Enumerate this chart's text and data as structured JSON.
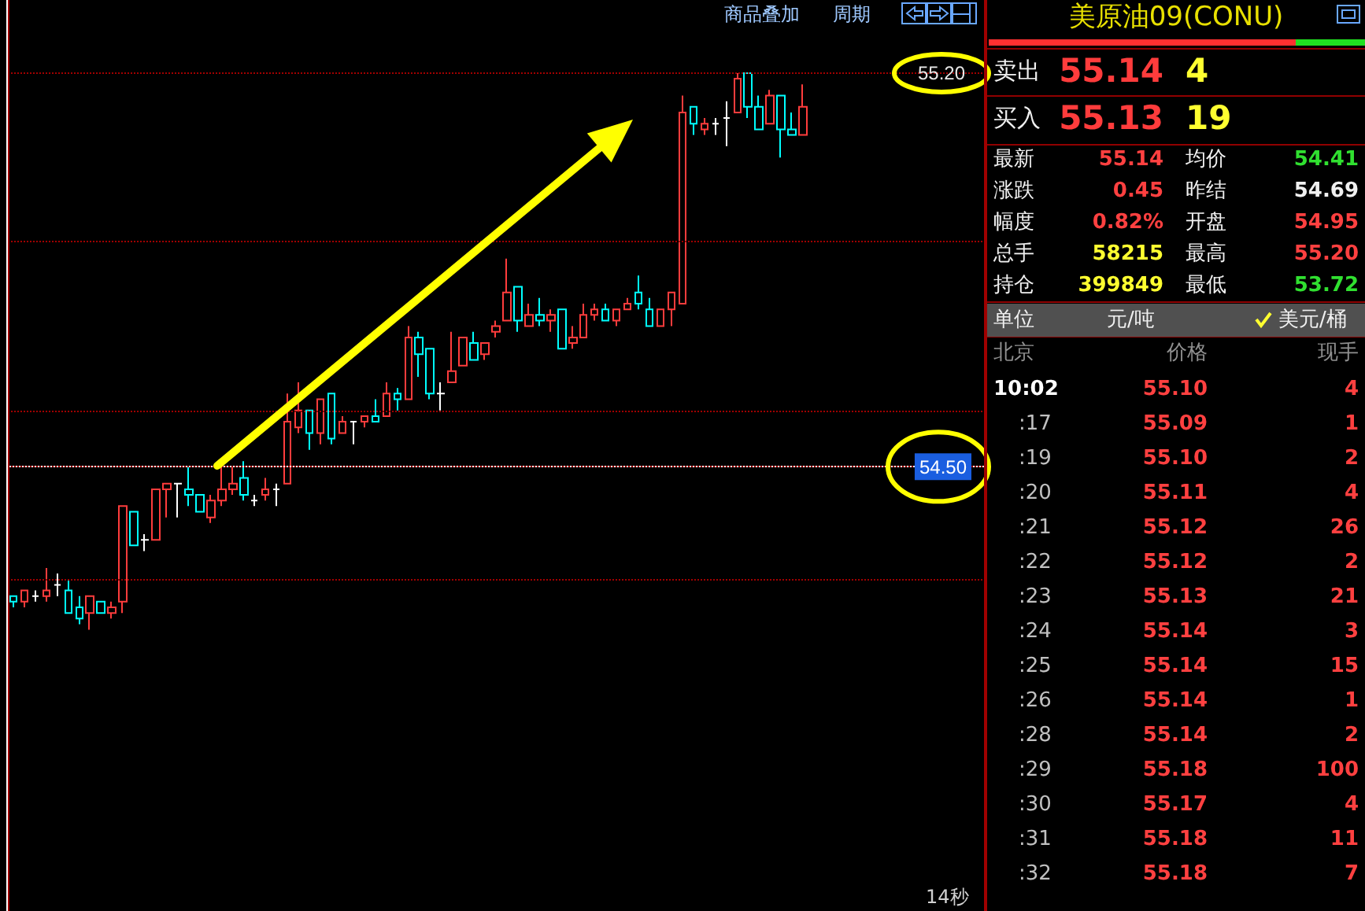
{
  "chart_data": [
    {
      "type": "candlestick",
      "categories": [
        null,
        null,
        null,
        null,
        null,
        null,
        null,
        null,
        null,
        null,
        null,
        null,
        null,
        null,
        null,
        null,
        null,
        null,
        null,
        null,
        null,
        null,
        null,
        null,
        null,
        null,
        null,
        null,
        null,
        null,
        null,
        null,
        null,
        null,
        null,
        null,
        null,
        null,
        null,
        null,
        null,
        null,
        null,
        null,
        null,
        null,
        null,
        null,
        null,
        null,
        null,
        null,
        null,
        null,
        null,
        null,
        null,
        null,
        null,
        null,
        null,
        null,
        null,
        null,
        null,
        null,
        null,
        null,
        null,
        null,
        null,
        null,
        null,
        null,
        null,
        null,
        null,
        null,
        null,
        null,
        null,
        null,
        null,
        null,
        null,
        null,
        null,
        null,
        null
      ],
      "ohlc": [
        [
          54.27,
          54.27,
          54.25,
          54.26
        ],
        [
          54.26,
          54.28,
          54.25,
          54.28
        ],
        [
          54.27,
          54.28,
          54.26,
          54.27
        ],
        [
          54.27,
          54.32,
          54.26,
          54.28
        ],
        [
          54.29,
          54.31,
          54.27,
          54.29
        ],
        [
          54.28,
          54.3,
          54.24,
          54.24
        ],
        [
          54.25,
          54.27,
          54.22,
          54.23
        ],
        [
          54.24,
          54.27,
          54.21,
          54.27
        ],
        [
          54.26,
          54.26,
          54.24,
          54.24
        ],
        [
          54.24,
          54.26,
          54.23,
          54.25
        ],
        [
          54.26,
          54.43,
          54.24,
          54.43
        ],
        [
          54.42,
          54.42,
          54.36,
          54.36
        ],
        [
          54.37,
          54.38,
          54.35,
          54.37
        ],
        [
          54.37,
          54.46,
          54.37,
          54.46
        ],
        [
          54.46,
          54.47,
          54.41,
          54.47
        ],
        [
          54.47,
          54.47,
          54.41,
          54.47
        ],
        [
          54.46,
          54.5,
          54.43,
          54.45
        ],
        [
          54.45,
          54.45,
          54.42,
          54.42
        ],
        [
          54.41,
          54.45,
          54.4,
          54.44
        ],
        [
          54.44,
          54.5,
          54.43,
          54.46
        ],
        [
          54.46,
          54.5,
          54.45,
          54.47
        ],
        [
          54.48,
          54.51,
          54.44,
          54.45
        ],
        [
          54.44,
          54.45,
          54.43,
          54.44
        ],
        [
          54.45,
          54.48,
          54.44,
          54.46
        ],
        [
          54.46,
          54.47,
          54.43,
          54.46
        ],
        [
          54.47,
          54.63,
          54.47,
          54.58
        ],
        [
          54.57,
          54.65,
          54.56,
          54.6
        ],
        [
          54.6,
          54.6,
          54.53,
          54.56
        ],
        [
          54.56,
          54.62,
          54.54,
          54.62
        ],
        [
          54.63,
          54.63,
          54.54,
          54.55
        ],
        [
          54.56,
          54.59,
          54.56,
          54.58
        ],
        [
          54.58,
          54.58,
          54.54,
          54.58
        ],
        [
          54.58,
          54.59,
          54.57,
          54.59
        ],
        [
          54.59,
          54.62,
          54.58,
          54.58
        ],
        [
          54.59,
          54.65,
          54.59,
          54.63
        ],
        [
          54.63,
          54.64,
          54.6,
          54.62
        ],
        [
          54.62,
          54.75,
          54.62,
          54.73
        ],
        [
          54.73,
          54.74,
          54.66,
          54.7
        ],
        [
          54.71,
          54.71,
          54.62,
          54.63
        ],
        [
          54.63,
          54.65,
          54.6,
          54.63
        ],
        [
          54.65,
          54.74,
          54.65,
          54.67
        ],
        [
          54.68,
          54.73,
          54.68,
          54.73
        ],
        [
          54.72,
          54.74,
          54.69,
          54.69
        ],
        [
          54.7,
          54.72,
          54.69,
          54.72
        ],
        [
          54.74,
          54.76,
          54.73,
          54.75
        ],
        [
          54.76,
          54.87,
          54.76,
          54.81
        ],
        [
          54.82,
          54.82,
          54.74,
          54.76
        ],
        [
          54.75,
          54.79,
          54.75,
          54.77
        ],
        [
          54.77,
          54.8,
          54.75,
          54.76
        ],
        [
          54.76,
          54.78,
          54.74,
          54.77
        ],
        [
          54.78,
          54.78,
          54.71,
          54.71
        ],
        [
          54.72,
          54.75,
          54.71,
          54.73
        ],
        [
          54.73,
          54.79,
          54.73,
          54.77
        ],
        [
          54.77,
          54.79,
          54.76,
          54.78
        ],
        [
          54.78,
          54.79,
          54.76,
          54.76
        ],
        [
          54.76,
          54.78,
          54.75,
          54.78
        ],
        [
          54.78,
          54.8,
          54.78,
          54.79
        ],
        [
          54.81,
          54.84,
          54.78,
          54.79
        ],
        [
          54.78,
          54.8,
          54.75,
          54.75
        ],
        [
          54.75,
          54.78,
          54.75,
          54.78
        ],
        [
          54.78,
          54.81,
          54.75,
          54.81
        ],
        [
          54.79,
          55.16,
          54.79,
          55.13
        ],
        [
          55.14,
          55.14,
          55.09,
          55.11
        ],
        [
          55.1,
          55.12,
          55.09,
          55.11
        ],
        [
          55.11,
          55.12,
          55.09,
          55.11
        ],
        [
          55.12,
          55.15,
          55.07,
          55.12
        ],
        [
          55.13,
          55.2,
          55.13,
          55.19
        ],
        [
          55.2,
          55.2,
          55.12,
          55.14
        ],
        [
          55.14,
          55.16,
          55.1,
          55.1
        ],
        [
          55.11,
          55.17,
          55.11,
          55.16
        ],
        [
          55.16,
          55.16,
          55.05,
          55.1
        ],
        [
          55.1,
          55.13,
          55.09,
          55.09
        ],
        [
          55.09,
          55.18,
          55.09,
          55.14
        ],
        null,
        null,
        null,
        null,
        null,
        null,
        null,
        null,
        null,
        null,
        null,
        null,
        null,
        null,
        null,
        null
      ],
      "colors": [
        "#00ffff",
        "#ff3c3c",
        "#ffffff",
        "#ff3c3c",
        "#ffffff",
        "#00ffff",
        "#00ffff",
        "#ff3c3c",
        "#00ffff",
        "#ff3c3c",
        "#ff3c3c",
        "#00ffff",
        "#ffffff",
        "#ff3c3c",
        "#ff3c3c",
        "#ffffff",
        "#00ffff",
        "#00ffff",
        "#ff3c3c",
        "#ff3c3c",
        "#ff3c3c",
        "#00ffff",
        "#ffffff",
        "#ff3c3c",
        "#ffffff",
        "#ff3c3c",
        "#ff3c3c",
        "#00ffff",
        "#ff3c3c",
        "#00ffff",
        "#ff3c3c",
        "#ffffff",
        "#ff3c3c",
        "#00ffff",
        "#ff3c3c",
        "#00ffff",
        "#ff3c3c",
        "#00ffff",
        "#00ffff",
        "#ffffff",
        "#ff3c3c",
        "#ff3c3c",
        "#00ffff",
        "#ff3c3c",
        "#ff3c3c",
        "#ff3c3c",
        "#00ffff",
        "#ff3c3c",
        "#00ffff",
        "#ff3c3c",
        "#00ffff",
        "#ff3c3c",
        "#ff3c3c",
        "#ff3c3c",
        "#00ffff",
        "#ff3c3c",
        "#ff3c3c",
        "#00ffff",
        "#00ffff",
        "#ff3c3c",
        "#ff3c3c",
        "#ff3c3c",
        "#00ffff",
        "#ff3c3c",
        "#ffffff",
        "#ffffff",
        "#ff3c3c",
        "#00ffff",
        "#00ffff",
        "#ff3c3c",
        "#00ffff",
        "#00ffff",
        "#ff3c3c",
        null,
        null,
        null,
        null,
        null,
        null,
        null,
        null,
        null,
        null,
        null,
        null,
        null,
        null,
        null,
        null
      ],
      "ylim": [
        53.71,
        55.33
      ],
      "yticks": [
        {
          "value": 54.3,
          "label": null
        },
        {
          "value": 54.5,
          "label": "54.50"
        },
        {
          "value": 54.6,
          "label": null
        },
        {
          "value": 54.9,
          "label": null
        },
        {
          "value": 55.2,
          "label": "55.20"
        }
      ],
      "grid": "y",
      "tick_labels": "y",
      "ref_lines": [
        {
          "axis": "y",
          "value": 54.5,
          "color": "#ffffff"
        }
      ],
      "annotations": [
        "商品叠加",
        "周期",
        "14秒"
      ]
    },
    {
      "type": "other",
      "title": "美原油09(CONU)",
      "annotations": [
        "卖出",
        "55.14",
        "4",
        "买入",
        "55.13",
        "19",
        "最新",
        "55.14",
        "均价",
        "54.41",
        "涨跌",
        "0.45",
        "昨结",
        "54.69",
        "幅度",
        "0.82%",
        "开盘",
        "54.95",
        "总手",
        "58215",
        "最高",
        "55.20",
        "持仓",
        "399849",
        "最低",
        "53.72",
        "单位",
        "元/吨",
        "美元/桶",
        "北京",
        "价格",
        "现手",
        "10:02",
        "55.10",
        "4",
        ":17",
        "55.09",
        "1",
        ":19",
        "55.10",
        "2",
        ":20",
        "55.11",
        "4",
        ":21",
        "55.12",
        "26",
        ":22",
        "55.12",
        "2",
        ":23",
        "55.13",
        "21",
        ":24",
        "55.14",
        "3",
        ":25",
        "55.14",
        "15",
        ":26",
        "55.14",
        "1",
        ":28",
        "55.14",
        "2",
        ":29",
        "55.18",
        "100",
        ":30",
        "55.17",
        "4",
        ":31",
        "55.18",
        "11",
        ":32",
        "55.18",
        "7"
      ]
    }
  ]
}
